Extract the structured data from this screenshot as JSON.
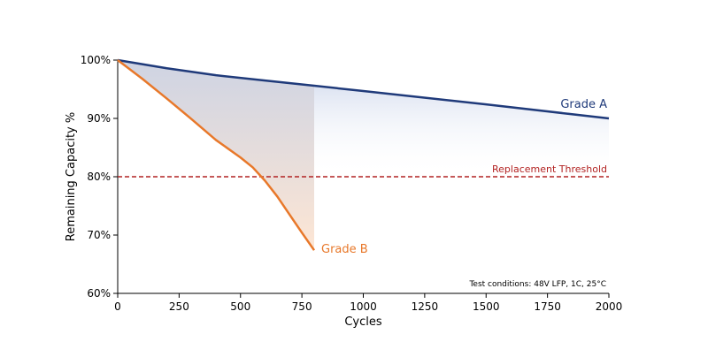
{
  "chart_data": {
    "type": "line",
    "title": "",
    "xlabel": "Cycles",
    "ylabel": "Remaining Capacity %",
    "xlim": [
      0,
      2000
    ],
    "ylim": [
      60,
      100
    ],
    "xticks": [
      0,
      250,
      500,
      750,
      1000,
      1250,
      1500,
      1750,
      2000
    ],
    "xtick_labels": [
      "0",
      "250",
      "500",
      "750",
      "1000",
      "1250",
      "1500",
      "1750",
      "2000"
    ],
    "yticks": [
      60,
      70,
      80,
      90,
      100
    ],
    "ytick_labels": [
      "60%",
      "70%",
      "80%",
      "90%",
      "100%"
    ],
    "grid": false,
    "series": [
      {
        "name": "Grade A",
        "color": "#1f3a7a",
        "x": [
          0,
          200,
          400,
          600,
          800,
          1000,
          1500,
          2000
        ],
        "y": [
          100,
          98.6,
          97.4,
          96.5,
          95.6,
          94.7,
          92.4,
          90
        ]
      },
      {
        "name": "Grade B",
        "color": "#e8782a",
        "x": [
          0,
          100,
          200,
          300,
          400,
          500,
          550,
          600,
          650,
          700,
          750,
          800
        ],
        "y": [
          100,
          96.8,
          93.4,
          89.9,
          86.3,
          83.3,
          81.6,
          79.3,
          76.6,
          73.5,
          70.4,
          67.4
        ]
      }
    ],
    "threshold": {
      "label": "Replacement Threshold",
      "value": 80,
      "color": "#b22222"
    },
    "annotation": "Test conditions: 48V LFP, 1C, 25°C"
  }
}
